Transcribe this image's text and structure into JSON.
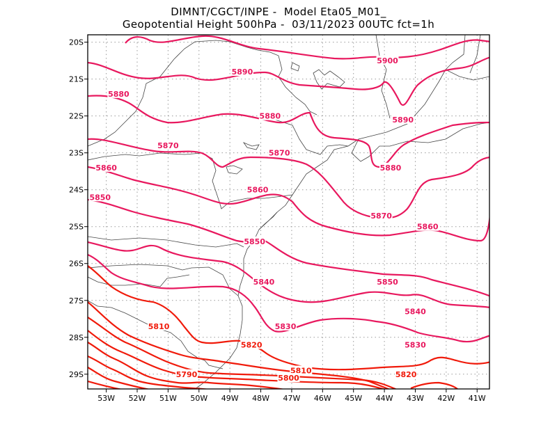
{
  "title_line1": "DIMNT/CGCT/INPE -  Model Eta05_M01_",
  "title_line2": "Geopotential Height 500hPa -  03/11/2023 00UTC fct=1h",
  "colors": {
    "magenta": "#e8185e",
    "red": "#f01a0a",
    "coast": "#444444",
    "grid": "#999999"
  },
  "chart_data": {
    "type": "contour-map",
    "variable": "Geopotential Height 500hPa",
    "lon_range": [
      -53.6,
      -40.6
    ],
    "lat_range": [
      -29.4,
      -19.8
    ],
    "x_ticks": [
      "53W",
      "52W",
      "51W",
      "50W",
      "49W",
      "48W",
      "47W",
      "46W",
      "45W",
      "44W",
      "43W",
      "42W",
      "41W"
    ],
    "y_ticks": [
      "20S",
      "21S",
      "22S",
      "23S",
      "24S",
      "25S",
      "26S",
      "27S",
      "28S",
      "29S"
    ],
    "grid": "dotted",
    "contour_interval": 10,
    "labels": [
      {
        "text": "5900",
        "lon": -43.9,
        "lat": -20.5
      },
      {
        "text": "5890",
        "lon": -48.6,
        "lat": -20.8
      },
      {
        "text": "5890",
        "lon": -43.4,
        "lat": -22.1
      },
      {
        "text": "5880",
        "lon": -52.6,
        "lat": -21.4
      },
      {
        "text": "5880",
        "lon": -47.7,
        "lat": -22.0
      },
      {
        "text": "5880",
        "lon": -43.8,
        "lat": -23.4
      },
      {
        "text": "5870",
        "lon": -51.0,
        "lat": -22.8
      },
      {
        "text": "5870",
        "lon": -47.4,
        "lat": -23.0
      },
      {
        "text": "5870",
        "lon": -44.1,
        "lat": -24.7
      },
      {
        "text": "5860",
        "lon": -53.0,
        "lat": -23.4
      },
      {
        "text": "5860",
        "lon": -48.1,
        "lat": -24.0
      },
      {
        "text": "5860",
        "lon": -42.6,
        "lat": -25.0
      },
      {
        "text": "5850",
        "lon": -53.2,
        "lat": -24.2
      },
      {
        "text": "5850",
        "lon": -48.2,
        "lat": -25.4
      },
      {
        "text": "5850",
        "lon": -43.9,
        "lat": -26.5
      },
      {
        "text": "5840",
        "lon": -47.9,
        "lat": -26.5
      },
      {
        "text": "5840",
        "lon": -43.0,
        "lat": -27.3
      },
      {
        "text": "5830",
        "lon": -47.2,
        "lat": -27.7
      },
      {
        "text": "5830",
        "lon": -43.0,
        "lat": -28.2
      },
      {
        "text": "5820",
        "lon": -48.3,
        "lat": -28.2
      },
      {
        "text": "5820",
        "lon": -43.3,
        "lat": -29.0
      },
      {
        "text": "5810",
        "lon": -51.3,
        "lat": -27.7
      },
      {
        "text": "5810",
        "lon": -46.7,
        "lat": -28.9
      },
      {
        "text": "5800",
        "lon": -47.1,
        "lat": -29.1
      },
      {
        "text": "5790",
        "lon": -50.4,
        "lat": -29.0
      }
    ]
  }
}
